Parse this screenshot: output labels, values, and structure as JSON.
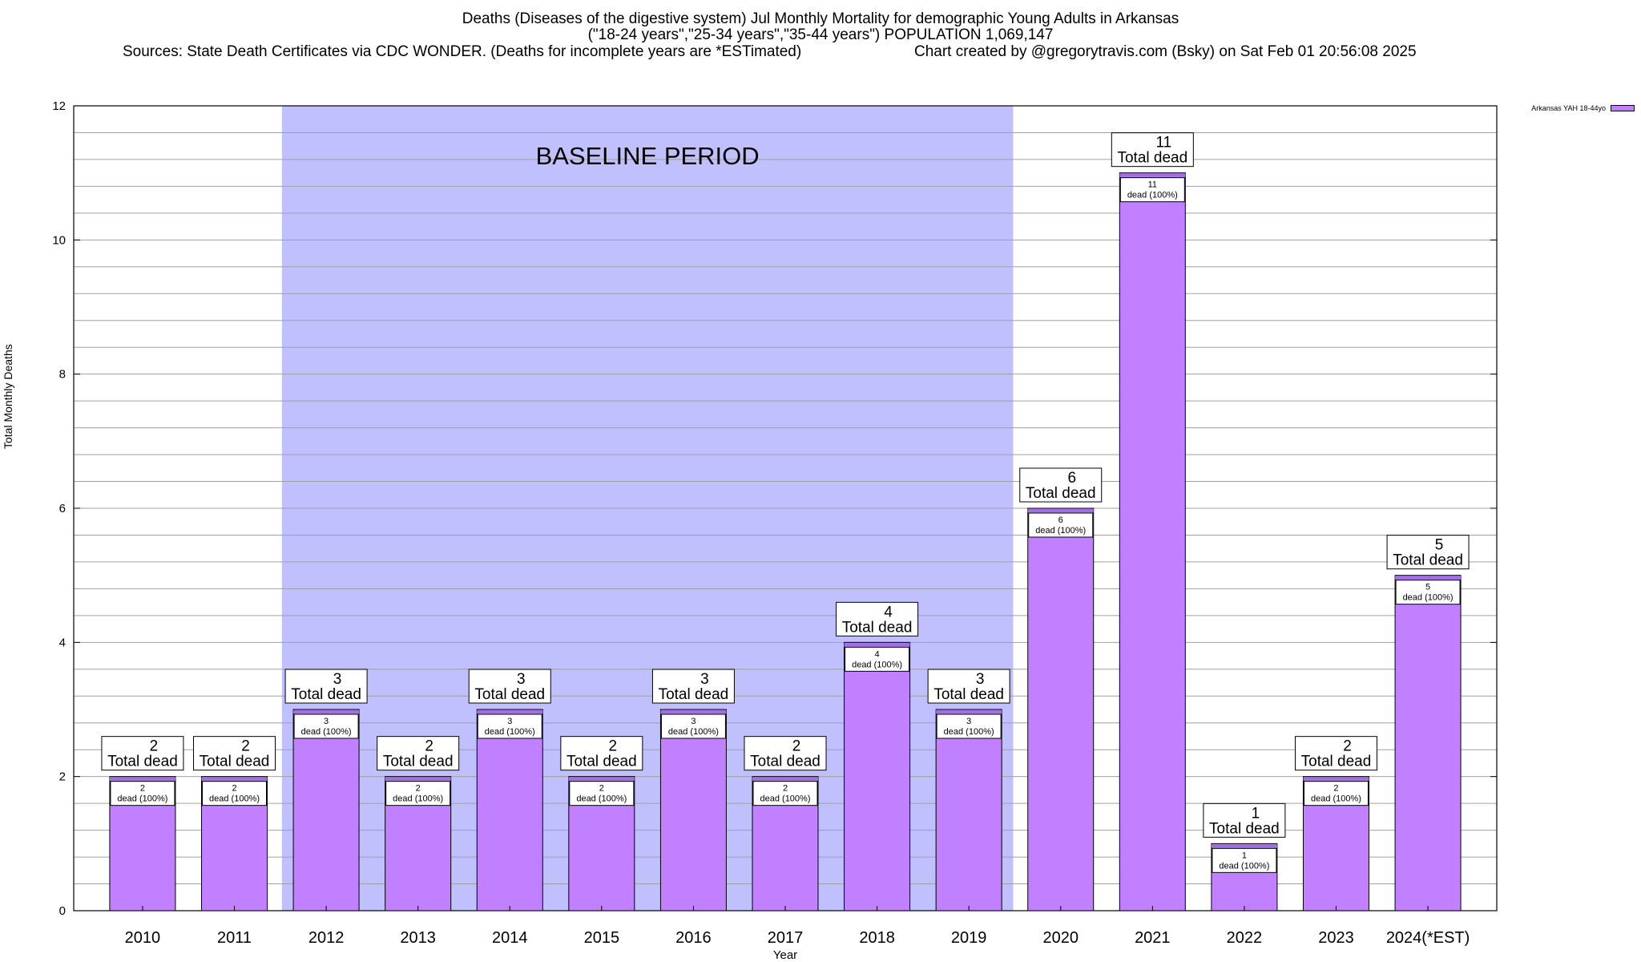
{
  "chart_data": {
    "type": "bar",
    "title_lines": [
      "Deaths (Diseases of the digestive system) Jul Monthly Mortality for demographic Young Adults in Arkansas",
      "(\"18-24 years\",\"25-34 years\",\"35-44 years\") POPULATION 1,069,147"
    ],
    "sources": "Sources: State Death Certificates via CDC WONDER. (Deaths for incomplete years are *ESTimated)",
    "credit": "Chart created by @gregorytravis.com (Bsky) on Sat Feb 01 20:56:08 2025",
    "xlabel": "Year",
    "ylabel": "Total Monthly Deaths",
    "ylim": [
      0,
      12
    ],
    "yticks": [
      0,
      2,
      4,
      6,
      8,
      10,
      12
    ],
    "categories": [
      "2010",
      "2011",
      "2012",
      "2013",
      "2014",
      "2015",
      "2016",
      "2017",
      "2018",
      "2019",
      "2020",
      "2021",
      "2022",
      "2023",
      "2024(*EST)"
    ],
    "series": [
      {
        "name": "Arkansas YAH 18-44yo",
        "values": [
          2,
          2,
          3,
          2,
          3,
          2,
          3,
          2,
          4,
          3,
          6,
          11,
          1,
          2,
          5
        ]
      }
    ],
    "bar_label_suffix": "Total dead",
    "inner_label_suffix": "dead (100%)",
    "baseline": {
      "label": "BASELINE PERIOD",
      "from": "2012",
      "to": "2019"
    },
    "grid": true,
    "legend_position": "top-right",
    "colors": {
      "bar": "#c080ff",
      "bar_top": "#a070e0",
      "baseline": "#c0c0ff"
    }
  }
}
